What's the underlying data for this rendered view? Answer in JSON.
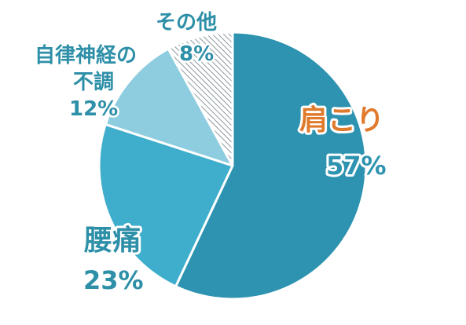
{
  "chart_data": {
    "type": "pie",
    "slices": [
      {
        "label": "肩こり",
        "value": 57,
        "value_label": "57%",
        "color": "#2E93B0",
        "label_color": "#E07A2C",
        "value_color": "#2E93B0"
      },
      {
        "label": "腰痛",
        "value": 23,
        "value_label": "23%",
        "color": "#3FAECC",
        "label_color": "#2E8FA8",
        "value_color": "#2E8FA8"
      },
      {
        "label_lines": [
          "自律神経の",
          "不調"
        ],
        "value": 12,
        "value_label": "12%",
        "color": "#8ECDE0",
        "label_color": "#2E8FA8",
        "value_color": "#2E8FA8"
      },
      {
        "label": "その他",
        "value": 8,
        "value_label": "8%",
        "color": "hatched",
        "label_color": "#2E8FA8",
        "value_color": "#2E8FA8"
      }
    ],
    "start": "12 o'clock",
    "direction": "clockwise",
    "legend": "none"
  }
}
